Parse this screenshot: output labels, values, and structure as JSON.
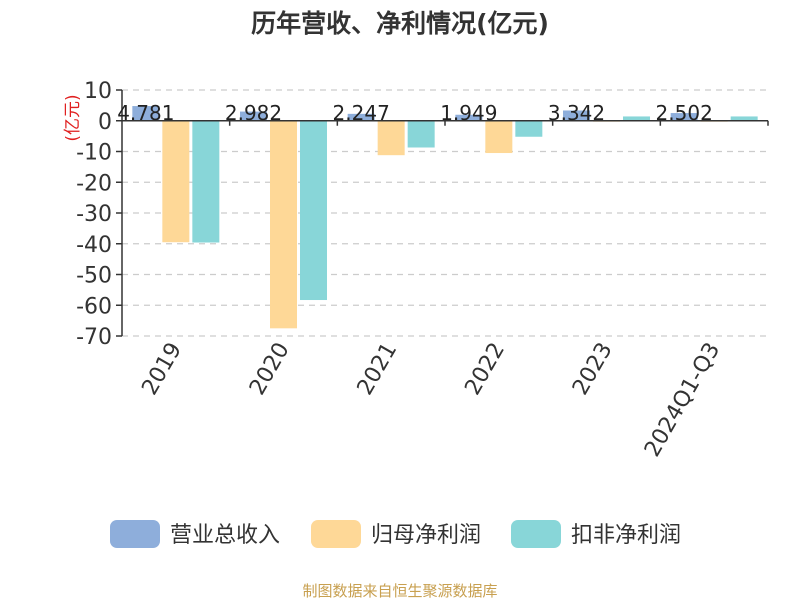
{
  "chart_data": {
    "type": "bar",
    "title": "历年营收、净利情况(亿元)",
    "ylabel": "(亿元)",
    "xlabel": "",
    "categories": [
      "2019",
      "2020",
      "2021",
      "2022",
      "2023",
      "2024Q1-Q3"
    ],
    "ylim": [
      -70,
      10
    ],
    "yticks": [
      10,
      0,
      -10,
      -20,
      -30,
      -40,
      -50,
      -60,
      -70
    ],
    "grid": true,
    "legend_position": "bottom",
    "series": [
      {
        "name": "营业总收入",
        "color": "#8eaedb",
        "values": [
          4.781,
          2.982,
          2.247,
          1.949,
          3.342,
          2.502
        ]
      },
      {
        "name": "归母净利润",
        "color": "#fed897",
        "values": [
          -39.5,
          -67.5,
          -11.2,
          -10.5,
          -0.3,
          -0.3
        ]
      },
      {
        "name": "扣非净利润",
        "color": "#88d6d8",
        "values": [
          -39.6,
          -58.3,
          -8.7,
          -5.2,
          1.4,
          1.4
        ]
      }
    ],
    "data_labels": [
      "4.781",
      "2.982",
      "2.247",
      "1.949",
      "3.342",
      "2.502"
    ],
    "source": "制图数据来自恒生聚源数据库"
  }
}
